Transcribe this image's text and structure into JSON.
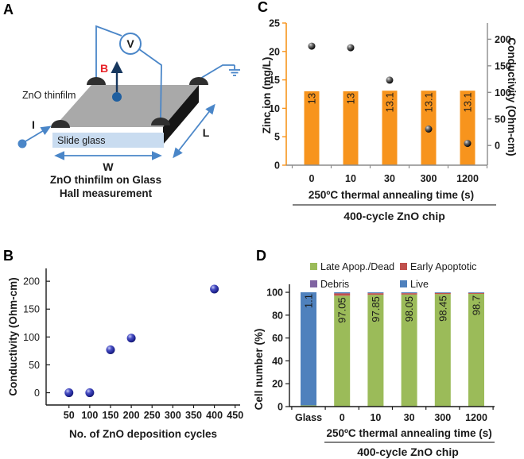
{
  "panels": {
    "a": "A",
    "b": "B",
    "c": "C",
    "d": "D"
  },
  "panel_a": {
    "labels": {
      "film": "ZnO thinfilm",
      "glass": "Slide glass",
      "current": "I",
      "magnetic_field": "B",
      "voltmeter": "V",
      "width": "W",
      "length": "L",
      "caption_line1": "ZnO thinfilm on Glass",
      "caption_line2": "Hall measurement"
    },
    "colors": {
      "film_top": "#a9a9a9",
      "film_side": "#161616",
      "glass": "#c9dcf0",
      "wire": "#4a86c8",
      "contact": "#2f2f2f",
      "node": "#1f5fa0",
      "field_arrow": "#17375e",
      "field_label": "#e8242a"
    }
  },
  "chart_data": [
    {
      "panel": "B",
      "type": "scatter",
      "xlabel": "No. of ZnO deposition cycles",
      "ylabel": "Conductivity (Ohm-cm)",
      "x": [
        50,
        100,
        150,
        200,
        400
      ],
      "y": [
        0,
        0,
        77,
        98,
        186
      ],
      "xticks": [
        50,
        100,
        150,
        200,
        250,
        300,
        350,
        400,
        450
      ],
      "yticks": [
        0,
        50,
        100,
        150,
        200
      ],
      "xlim": [
        -5,
        462
      ],
      "ylim": [
        -22,
        223
      ],
      "grid": false,
      "legend": "none",
      "marker": {
        "shape": "sphere",
        "color": "#23279b",
        "radius": 5.5
      }
    },
    {
      "panel": "C",
      "type": "bar",
      "subtype": "bar+scatter dual-axis",
      "categories": [
        "0",
        "10",
        "30",
        "300",
        "1200"
      ],
      "bars": {
        "name": "Zinc ion",
        "axis": "left",
        "values": [
          13,
          13,
          13.1,
          13.1,
          13.1
        ],
        "labels": [
          "13",
          "13",
          "13.1",
          "13.1",
          "13.1"
        ],
        "color": "#f7941d"
      },
      "markers": {
        "name": "Conductivity",
        "axis": "right",
        "values": [
          187,
          184,
          123,
          31,
          4
        ],
        "color": "#111111",
        "radius": 4.5
      },
      "left_axis": {
        "title": "Zinc ion (mg/L)",
        "ticks": [
          0,
          5,
          10,
          15,
          20,
          25
        ],
        "lim": [
          0,
          25
        ],
        "color": "#f7941d"
      },
      "right_axis": {
        "title": "Conductivity (Ohm-cm)",
        "ticks": [
          0,
          50,
          100,
          150,
          200
        ],
        "lim": [
          -37,
          230.5
        ]
      },
      "xlabel": "250ºC thermal annealing time (s)",
      "group_label": "400-cycle ZnO chip",
      "grid": false,
      "spine_color": "#8c8c8c"
    },
    {
      "panel": "D",
      "type": "bar",
      "subtype": "stacked-100pct",
      "categories": [
        "Glass",
        "0",
        "10",
        "30",
        "300",
        "1200"
      ],
      "series": [
        {
          "name": "Late Apop./Dead",
          "color": "#9bbb59",
          "values": [
            1.1,
            97.05,
            97.85,
            98.05,
            98.45,
            98.7
          ],
          "labels": [
            "1.1",
            "97.05",
            "97.85",
            "98.05",
            "98.45",
            "98.7"
          ]
        },
        {
          "name": "Early Apoptotic",
          "color": "#c0504d",
          "values": [
            0,
            1.95,
            1.35,
            1.2,
            0.95,
            0.75
          ]
        },
        {
          "name": "Debris",
          "color": "#8064a2",
          "values": [
            0,
            0.3,
            0.2,
            0.15,
            0.1,
            0.05
          ]
        },
        {
          "name": "Live",
          "color": "#4f81bd",
          "values": [
            98.9,
            0.7,
            0.6,
            0.6,
            0.5,
            0.5
          ]
        }
      ],
      "ylabel": "Cell number (%)",
      "yticks": [
        0,
        20,
        40,
        60,
        80,
        100
      ],
      "ylim": [
        0,
        107
      ],
      "xlabel": "250ºC thermal annealing time (s)",
      "group_label": "400-cycle ZnO chip",
      "grid": false,
      "legend_position": "top, 2 columns"
    }
  ]
}
